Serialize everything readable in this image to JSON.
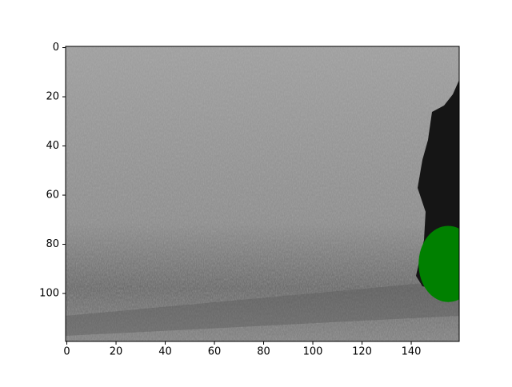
{
  "chart_data": {
    "type": "image",
    "xlim": [
      -0.5,
      159.5
    ],
    "ylim": [
      119.5,
      -0.5
    ],
    "xticks": [
      0,
      20,
      40,
      60,
      80,
      100,
      120,
      140
    ],
    "yticks": [
      0,
      20,
      40,
      60,
      80,
      100
    ],
    "ellipse": {
      "center": [
        155,
        88
      ],
      "width": 24,
      "height": 31,
      "color": "#008000"
    }
  }
}
